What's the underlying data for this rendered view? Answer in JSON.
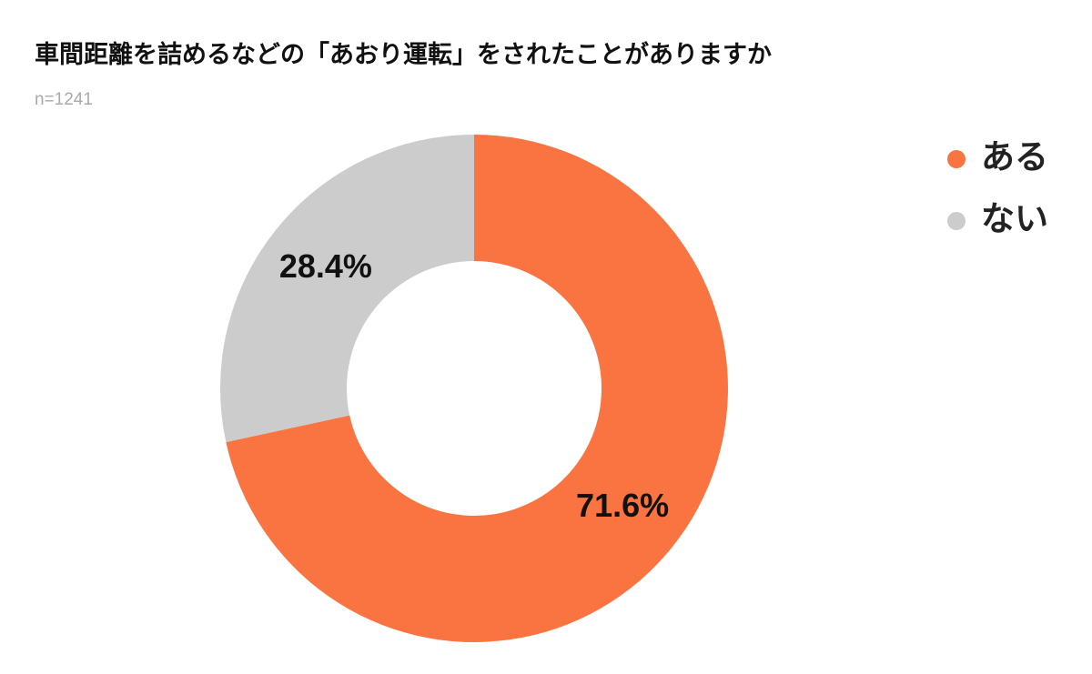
{
  "chart_data": {
    "type": "donut",
    "title": "車間距離を詰めるなどの「あおり運転」をされたことがありますか",
    "subtitle": "n=1241",
    "categories": [
      "ある",
      "ない"
    ],
    "values": [
      71.6,
      28.4
    ],
    "value_labels": [
      "71.6%",
      "28.4%"
    ],
    "colors": [
      "#f97441",
      "#cccccc"
    ],
    "legend": "top-right"
  }
}
